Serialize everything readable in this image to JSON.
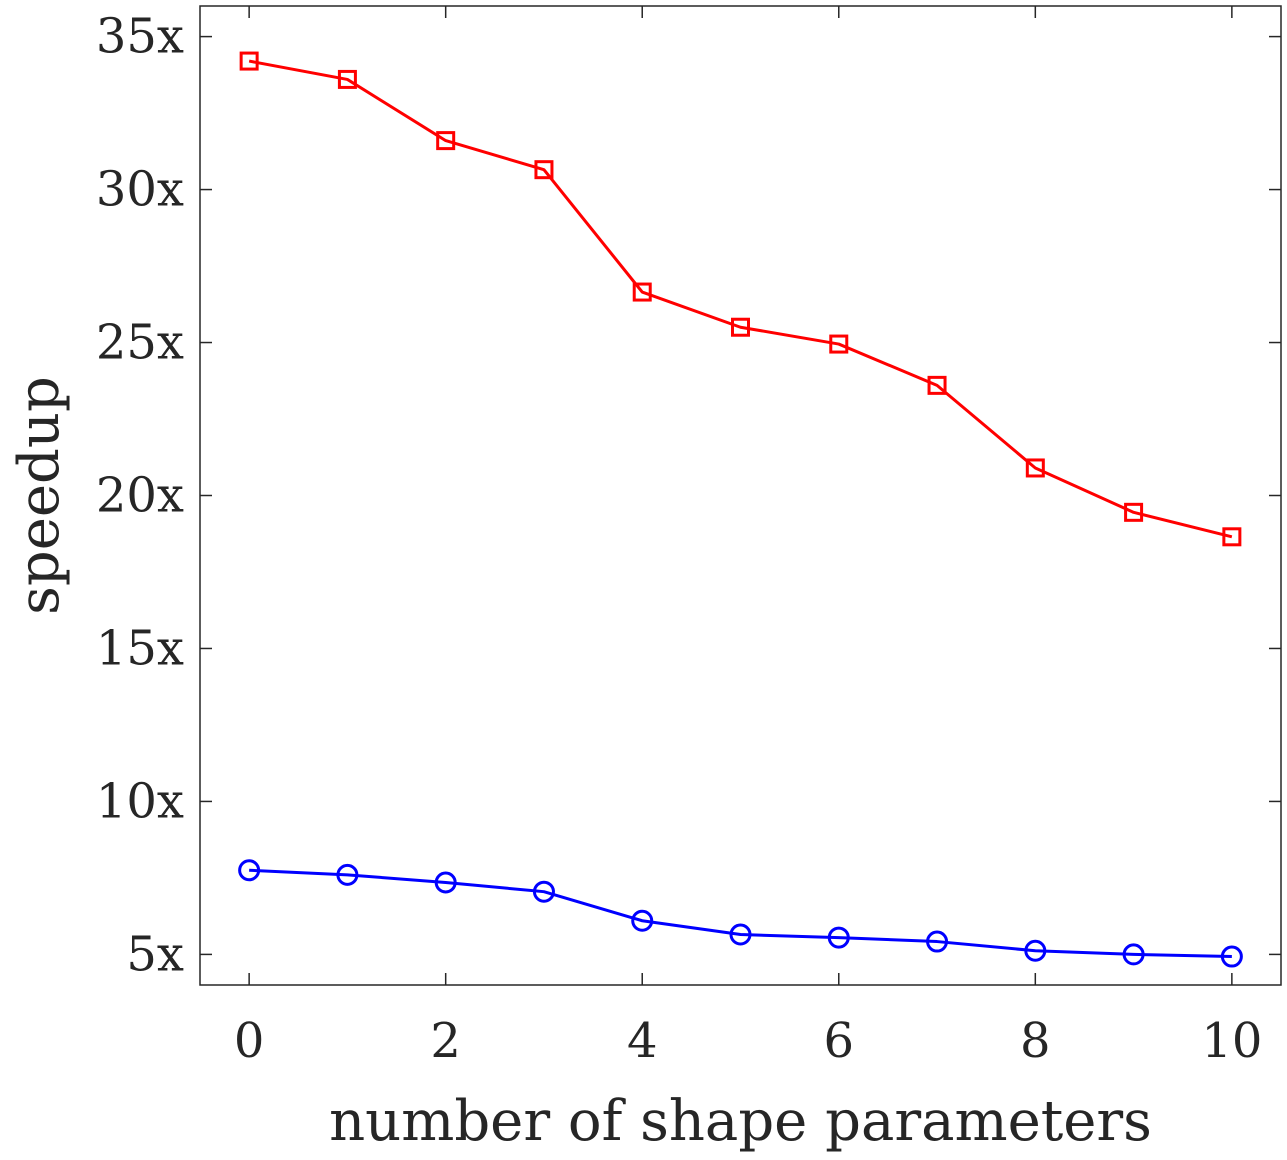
{
  "chart_data": {
    "type": "line",
    "title": "",
    "xlabel": "number of shape parameters",
    "ylabel": "speedup",
    "xlim": [
      -0.5,
      10.5
    ],
    "ylim": [
      4,
      36
    ],
    "xticks": [
      0,
      2,
      4,
      6,
      8,
      10
    ],
    "xtick_labels": [
      "0",
      "2",
      "4",
      "6",
      "8",
      "10"
    ],
    "yticks": [
      5,
      10,
      15,
      20,
      25,
      30,
      35
    ],
    "ytick_labels": [
      "5x",
      "10x",
      "15x",
      "20x",
      "25x",
      "30x",
      "35x"
    ],
    "grid": false,
    "legend": "none",
    "x": [
      0,
      1,
      2,
      3,
      4,
      5,
      6,
      7,
      8,
      9,
      10
    ],
    "series": [
      {
        "color": "#ff0000",
        "marker": "square",
        "values": [
          34.2,
          33.6,
          31.6,
          30.65,
          26.65,
          25.5,
          24.95,
          23.6,
          20.9,
          19.45,
          18.65
        ]
      },
      {
        "color": "#0000ff",
        "marker": "circle",
        "values": [
          7.75,
          7.6,
          7.35,
          7.05,
          6.1,
          5.65,
          5.55,
          5.42,
          5.12,
          5.0,
          4.93
        ]
      }
    ]
  }
}
